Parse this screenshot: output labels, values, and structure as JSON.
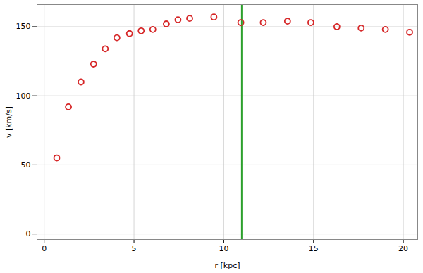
{
  "chart_data": {
    "type": "scatter",
    "x": [
      0.7,
      1.35,
      2.05,
      2.75,
      3.4,
      4.05,
      4.75,
      5.4,
      6.05,
      6.8,
      7.45,
      8.1,
      9.45,
      10.95,
      12.2,
      13.55,
      14.85,
      16.3,
      17.65,
      19.0,
      20.35
    ],
    "values": [
      55,
      92,
      110,
      123,
      134,
      142,
      145,
      147,
      148,
      152,
      155,
      156,
      157,
      153,
      153,
      154,
      153,
      150,
      149,
      148,
      146
    ],
    "color": "#d62728",
    "marker": "circle",
    "x_label": "r [kpc]",
    "y_label": "v [km/s]",
    "xlim": [
      -0.4,
      20.8
    ],
    "ylim": [
      -4,
      166
    ],
    "xticks": [
      0,
      5,
      10,
      15,
      20
    ],
    "yticks": [
      0,
      50,
      100,
      150
    ],
    "grid": true,
    "vlines": [
      {
        "x": 11,
        "color": "#2ca02c"
      }
    ]
  }
}
